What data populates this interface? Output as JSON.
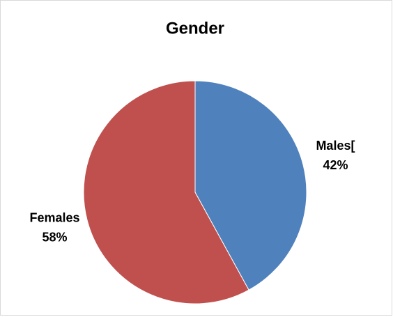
{
  "chart_data": {
    "type": "pie",
    "title": "Gender",
    "categories": [
      "Males[",
      "Females"
    ],
    "values": [
      42,
      58
    ],
    "value_labels": [
      "42%",
      "58%"
    ],
    "colors": [
      "#4f81bd",
      "#c0504d"
    ]
  }
}
